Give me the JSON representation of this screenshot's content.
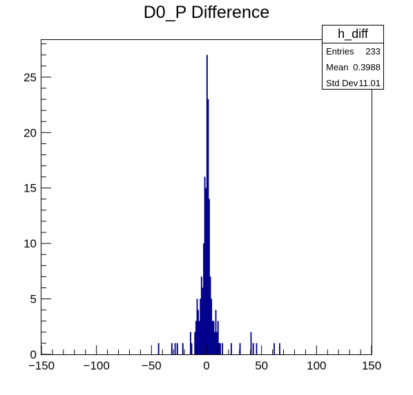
{
  "chart_data": {
    "type": "bar",
    "title": "D0_P Difference",
    "xlabel": "",
    "ylabel": "",
    "xlim": [
      -150,
      150
    ],
    "ylim": [
      0,
      28.35
    ],
    "x_ticks": [
      -150,
      -100,
      -50,
      0,
      50,
      100,
      150
    ],
    "y_ticks": [
      0,
      5,
      10,
      15,
      20,
      25
    ],
    "bin_width": 1,
    "fill_color": "#00008b",
    "line_color": "#00008b",
    "bins": [
      {
        "x": -44,
        "y": 1
      },
      {
        "x": -32,
        "y": 1
      },
      {
        "x": -29,
        "y": 1
      },
      {
        "x": -27,
        "y": 1
      },
      {
        "x": -22,
        "y": 1
      },
      {
        "x": -15,
        "y": 2
      },
      {
        "x": -14,
        "y": 1
      },
      {
        "x": -11,
        "y": 2
      },
      {
        "x": -10,
        "y": 3
      },
      {
        "x": -9,
        "y": 5
      },
      {
        "x": -8,
        "y": 4
      },
      {
        "x": -7,
        "y": 3
      },
      {
        "x": -6,
        "y": 5
      },
      {
        "x": -5,
        "y": 7
      },
      {
        "x": -4,
        "y": 6
      },
      {
        "x": -3,
        "y": 10
      },
      {
        "x": -2,
        "y": 16
      },
      {
        "x": -1,
        "y": 15
      },
      {
        "x": 0,
        "y": 27
      },
      {
        "x": 1,
        "y": 23
      },
      {
        "x": 2,
        "y": 14
      },
      {
        "x": 3,
        "y": 7
      },
      {
        "x": 4,
        "y": 5
      },
      {
        "x": 5,
        "y": 3
      },
      {
        "x": 6,
        "y": 3
      },
      {
        "x": 7,
        "y": 2
      },
      {
        "x": 8,
        "y": 4
      },
      {
        "x": 9,
        "y": 2
      },
      {
        "x": 10,
        "y": 3
      },
      {
        "x": 11,
        "y": 1
      },
      {
        "x": 12,
        "y": 1
      },
      {
        "x": 14,
        "y": 1
      },
      {
        "x": 22,
        "y": 1
      },
      {
        "x": 30,
        "y": 1
      },
      {
        "x": 40,
        "y": 2
      },
      {
        "x": 42,
        "y": 1
      },
      {
        "x": 45,
        "y": 1
      },
      {
        "x": 61,
        "y": 1
      },
      {
        "x": 66,
        "y": 1
      }
    ]
  },
  "stats": {
    "name": "h_diff",
    "entries_label": "Entries",
    "entries_value": "233",
    "mean_label": "Mean",
    "mean_value": "0.3988",
    "stddev_label": "Std Dev",
    "stddev_value": "11.01"
  }
}
